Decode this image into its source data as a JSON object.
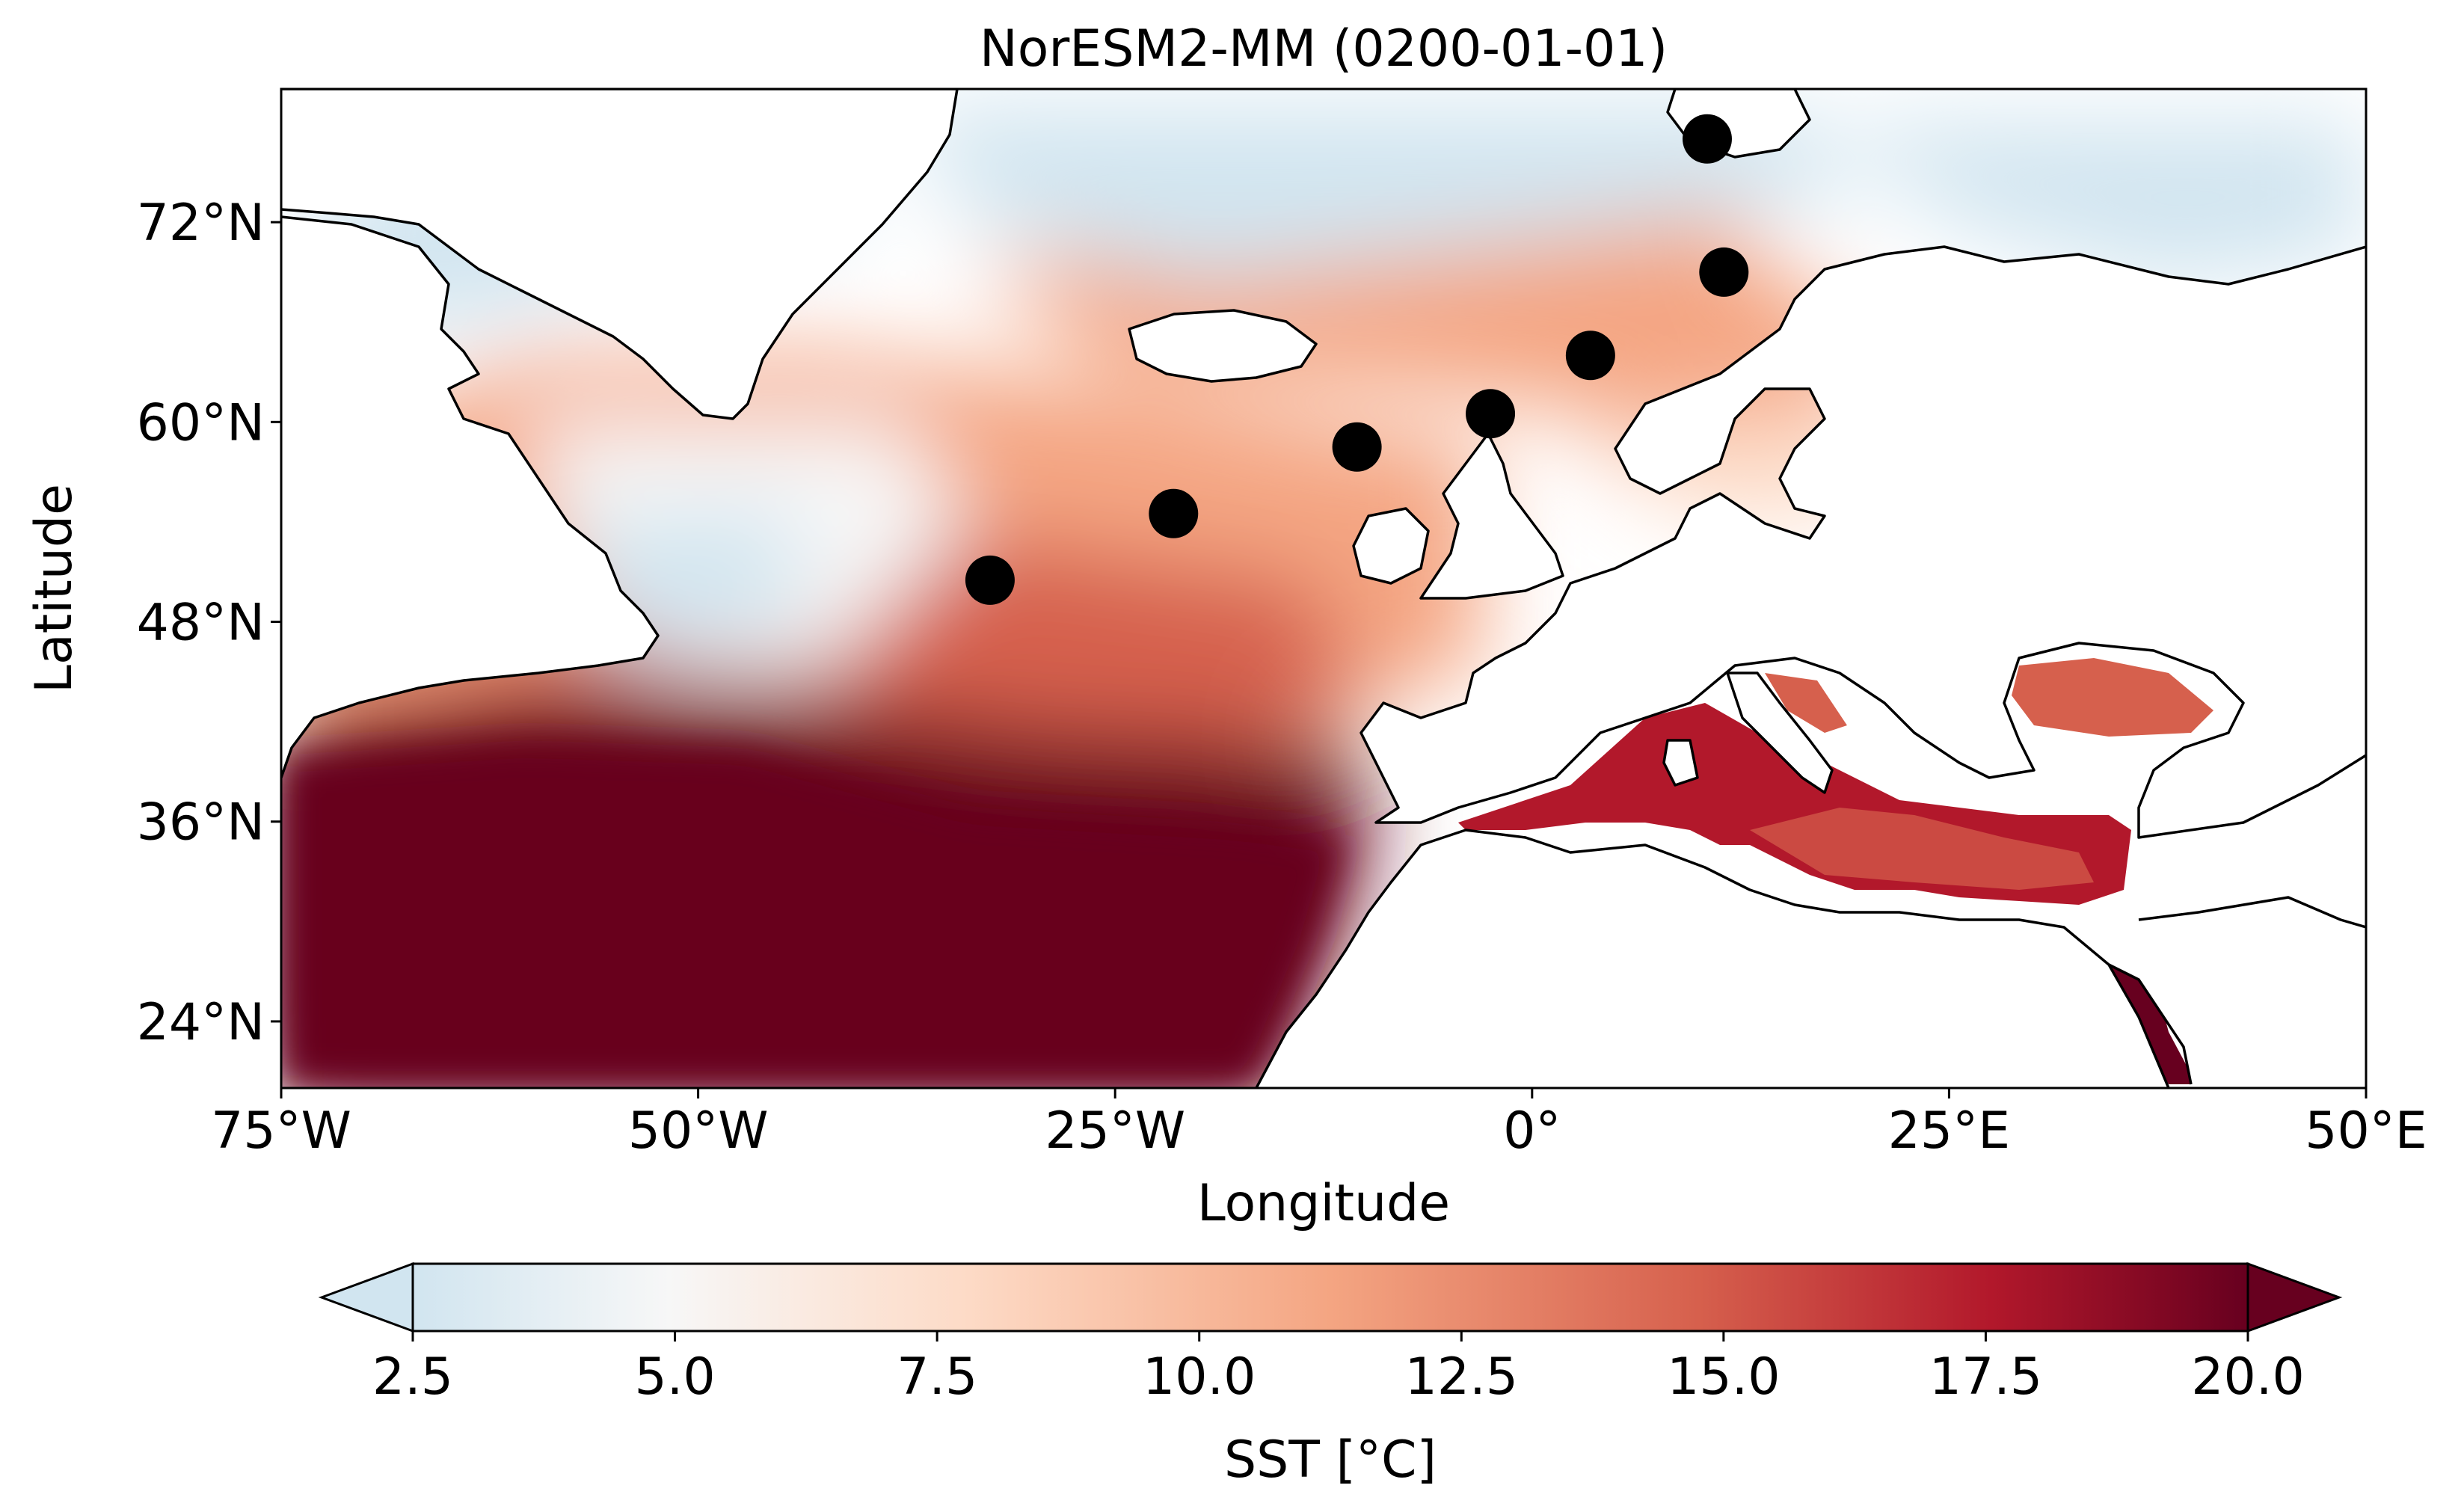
{
  "chart_data": {
    "type": "heatmap",
    "title": "NorESM2-MM (0200-01-01)",
    "xlabel": "Longitude",
    "ylabel": "Latitude",
    "xlim": [
      -75,
      50
    ],
    "ylim": [
      20,
      80
    ],
    "x_ticks": [
      {
        "value": -75,
        "label": "75°W"
      },
      {
        "value": -50,
        "label": "50°W"
      },
      {
        "value": -25,
        "label": "25°W"
      },
      {
        "value": 0,
        "label": "0°"
      },
      {
        "value": 25,
        "label": "25°E"
      },
      {
        "value": 50,
        "label": "50°E"
      }
    ],
    "y_ticks": [
      {
        "value": 24,
        "label": "24°N"
      },
      {
        "value": 36,
        "label": "36°N"
      },
      {
        "value": 48,
        "label": "48°N"
      },
      {
        "value": 60,
        "label": "60°N"
      },
      {
        "value": 72,
        "label": "72°N"
      }
    ],
    "colorbar": {
      "label": "SST [°C]",
      "colormap": "RdBu_r",
      "range": [
        2.5,
        20.0
      ],
      "extend": "both",
      "ticks": [
        "2.5",
        "5.0",
        "7.5",
        "10.0",
        "12.5",
        "15.0",
        "17.5",
        "20.0"
      ],
      "tick_values": [
        2.5,
        5.0,
        7.5,
        10.0,
        12.5,
        15.0,
        17.5,
        20.0
      ]
    },
    "markers": [
      {
        "lon": -32.5,
        "lat": 50.5
      },
      {
        "lon": -21.5,
        "lat": 54.5
      },
      {
        "lon": -10.5,
        "lat": 58.5
      },
      {
        "lon": -2.5,
        "lat": 60.5
      },
      {
        "lon": 3.5,
        "lat": 64.0
      },
      {
        "lon": 11.5,
        "lat": 69.0
      },
      {
        "lon": 10.5,
        "lat": 77.0
      }
    ],
    "colors": {
      "warm": "#67001f",
      "cool": "#d1e5f0",
      "neutral": "#f7f7f7",
      "marker": "#000000",
      "coastline": "#000000"
    }
  }
}
